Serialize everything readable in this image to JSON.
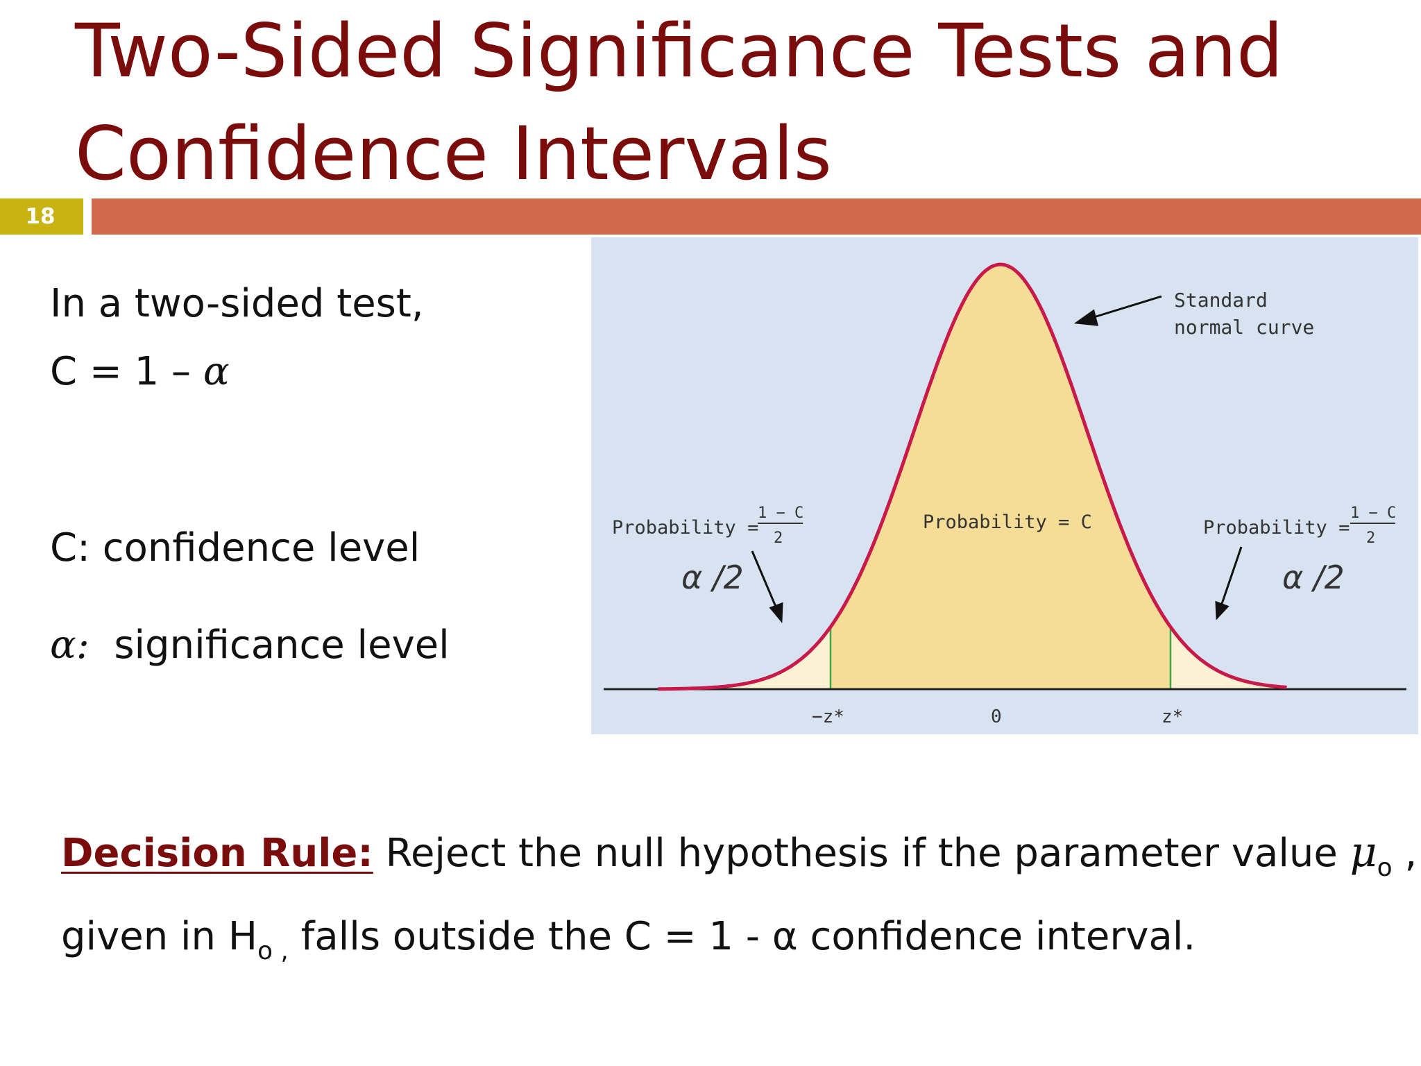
{
  "slide": {
    "title_line1": "Two-Sided Significance Tests and",
    "title_line2": "Confidence Intervals",
    "number": "18"
  },
  "left_panel": {
    "line1": "In a two-sided test,",
    "line2_prefix": "C = 1 – ",
    "line2_symbol": "α",
    "line3_label": "C",
    "line3_text": ": confidence level",
    "line4_symbol": "α",
    "line4_colon": ":",
    "line4_text": "significance level"
  },
  "figure": {
    "curve_label_line1": "Standard",
    "curve_label_line2": "normal curve",
    "left_prob_label": "Probability =",
    "left_prob_numerator": "1 − C",
    "left_prob_denominator": "2",
    "center_prob_label": "Probability = C",
    "right_prob_label": "Probability =",
    "right_prob_numerator": "1 − C",
    "right_prob_denominator": "2",
    "left_tail_annotation": "α /2",
    "right_tail_annotation": "α /2",
    "tick_left": "−z*",
    "tick_center": "0",
    "tick_right": "z*",
    "colors": {
      "background": "#d7e3f1",
      "center_fill": "#f5dc97",
      "tail_fill": "#fcf1d2",
      "curve": "#c8194a",
      "boundary": "#3fa64b",
      "axis": "#222222"
    }
  },
  "decision_rule": {
    "heading": "Decision Rule:",
    "text1": " Reject the null hypothesis if  the parameter value ",
    "mu": "μ",
    "mu_sub": "o",
    "text2": " ,",
    "line2_text1": "given in H",
    "line2_sub": "o ,",
    "line2_text2": " falls outside the C = 1  - α confidence interval."
  }
}
